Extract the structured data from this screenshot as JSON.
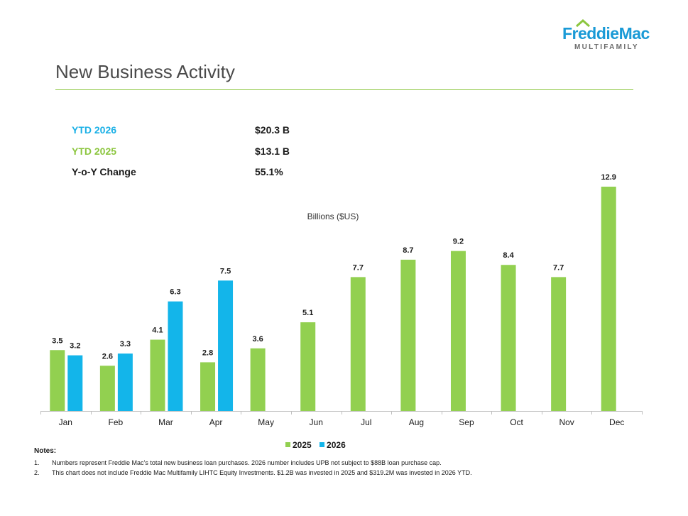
{
  "logo": {
    "name": "FreddieMac",
    "sub": "MULTIFAMILY",
    "colors": {
      "primary": "#1a9ad6",
      "secondary": "#8cc63f",
      "sub": "#6b6b6b"
    }
  },
  "title": "New Business Activity",
  "summary": [
    {
      "label": "YTD 2026",
      "value": "$20.3 B",
      "color": "#1ab0e6"
    },
    {
      "label": "YTD 2025",
      "value": "$13.1 B",
      "color": "#8cc63f"
    },
    {
      "label": "Y-o-Y Change",
      "value": "55.1%",
      "color": "#1a1a1a"
    }
  ],
  "chart_data": {
    "type": "bar",
    "subtitle": "Billions ($US)",
    "categories": [
      "Jan",
      "Feb",
      "Mar",
      "Apr",
      "May",
      "Jun",
      "Jul",
      "Aug",
      "Sep",
      "Oct",
      "Nov",
      "Dec"
    ],
    "series": [
      {
        "name": "2025",
        "color": "#92d050",
        "values": [
          3.5,
          2.6,
          4.1,
          2.8,
          3.6,
          5.1,
          7.7,
          8.7,
          9.2,
          8.4,
          7.7,
          12.9
        ]
      },
      {
        "name": "2026",
        "color": "#13b5ea",
        "values": [
          3.2,
          3.3,
          6.3,
          7.5,
          null,
          null,
          null,
          null,
          null,
          null,
          null,
          null
        ]
      }
    ],
    "data_labels": true,
    "legend": "bottom",
    "grid": false,
    "ylim": [
      0,
      12.9
    ]
  },
  "notes": {
    "heading": "Notes:",
    "items": [
      {
        "num": "1.",
        "text": "Numbers represent Freddie Mac’s total new business loan purchases. 2026 number includes UPB not subject to $88B loan purchase cap."
      },
      {
        "num": "2.",
        "text": "This chart does not include Freddie Mac Multifamily LIHTC Equity Investments. $1.2B was invested in 2025 and $319.2M was invested in 2026 YTD."
      }
    ]
  }
}
